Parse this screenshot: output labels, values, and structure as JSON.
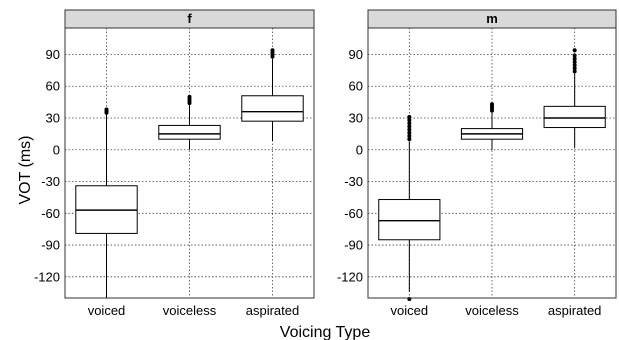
{
  "chart_data": {
    "type": "box",
    "xlabel": "Voicing Type",
    "ylabel": "VOT (ms)",
    "categories": [
      "voiced",
      "voiceless",
      "aspirated"
    ],
    "yticks": [
      -120,
      -90,
      -60,
      -30,
      0,
      30,
      60,
      90
    ],
    "ylim": [
      -140,
      115
    ],
    "grid": true,
    "panels": [
      {
        "label": "f",
        "boxes": [
          {
            "category": "voiced",
            "whisker_low": -140,
            "q1": -79,
            "median": -57,
            "q3": -34,
            "whisker_high": 34,
            "outliers": [
              35,
              36,
              37,
              38
            ]
          },
          {
            "category": "voiceless",
            "whisker_low": 0,
            "q1": 10,
            "median": 15,
            "q3": 23,
            "whisker_high": 42,
            "outliers": [
              44,
              46,
              48,
              50
            ]
          },
          {
            "category": "aspirated",
            "whisker_low": 8,
            "q1": 27,
            "median": 36,
            "q3": 51,
            "whisker_high": 86,
            "outliers": [
              88,
              90,
              92,
              94
            ]
          }
        ]
      },
      {
        "label": "m",
        "boxes": [
          {
            "category": "voiced",
            "whisker_low": -134,
            "q1": -85,
            "median": -67,
            "q3": -47,
            "whisker_high": 8,
            "outliers": [
              10,
              13,
              16,
              19,
              22,
              25,
              28,
              31,
              -141
            ]
          },
          {
            "category": "voiceless",
            "whisker_low": 0,
            "q1": 10,
            "median": 15,
            "q3": 20,
            "whisker_high": 35,
            "outliers": [
              37,
              39,
              41,
              43
            ]
          },
          {
            "category": "aspirated",
            "whisker_low": 2,
            "q1": 21,
            "median": 30,
            "q3": 41,
            "whisker_high": 72,
            "outliers": [
              74,
              77,
              80,
              83,
              86,
              89,
              94
            ]
          }
        ]
      }
    ]
  }
}
